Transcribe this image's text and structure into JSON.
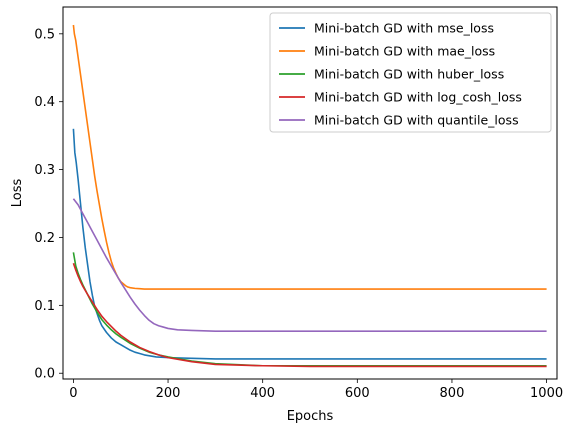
{
  "chart_data": {
    "type": "line",
    "title": "",
    "xlabel": "Epochs",
    "ylabel": "Loss",
    "xlim": [
      -22,
      1022
    ],
    "ylim": [
      -0.0085,
      0.5395
    ],
    "xticks": [
      "0",
      "200",
      "400",
      "600",
      "800",
      "1000"
    ],
    "yticks": [
      "0.0",
      "0.1",
      "0.2",
      "0.3",
      "0.4",
      "0.5"
    ],
    "grid": false,
    "legend_position": "top-right",
    "series": [
      {
        "name": "Mini-batch GD with mse_loss",
        "color": "#1f77b4",
        "x": [
          0,
          3,
          6,
          10,
          15,
          20,
          25,
          30,
          35,
          40,
          45,
          50,
          55,
          60,
          70,
          80,
          90,
          100,
          110,
          120,
          130,
          140,
          150,
          175,
          200,
          250,
          300,
          400,
          500,
          600,
          700,
          800,
          900,
          1000
        ],
        "y": [
          0.36,
          0.325,
          0.31,
          0.285,
          0.25,
          0.215,
          0.185,
          0.16,
          0.135,
          0.115,
          0.098,
          0.088,
          0.078,
          0.07,
          0.06,
          0.052,
          0.046,
          0.042,
          0.038,
          0.034,
          0.031,
          0.029,
          0.027,
          0.024,
          0.023,
          0.022,
          0.021,
          0.021,
          0.021,
          0.021,
          0.021,
          0.021,
          0.021,
          0.021
        ]
      },
      {
        "name": "Mini-batch GD with mae_loss",
        "color": "#ff7f0e",
        "x": [
          0,
          2,
          5,
          10,
          15,
          20,
          25,
          30,
          35,
          40,
          45,
          50,
          55,
          60,
          65,
          70,
          75,
          80,
          85,
          90,
          95,
          100,
          105,
          110,
          115,
          120,
          130,
          140,
          150,
          175,
          200,
          250,
          300,
          400,
          500,
          600,
          700,
          800,
          900,
          1000
        ],
        "y": [
          0.513,
          0.5,
          0.49,
          0.465,
          0.44,
          0.415,
          0.39,
          0.365,
          0.34,
          0.315,
          0.29,
          0.268,
          0.248,
          0.228,
          0.21,
          0.193,
          0.178,
          0.165,
          0.155,
          0.147,
          0.14,
          0.135,
          0.132,
          0.129,
          0.127,
          0.126,
          0.125,
          0.1245,
          0.124,
          0.124,
          0.124,
          0.124,
          0.124,
          0.124,
          0.124,
          0.124,
          0.124,
          0.124,
          0.124,
          0.124
        ]
      },
      {
        "name": "Mini-batch GD with huber_loss",
        "color": "#2ca02c",
        "x": [
          0,
          5,
          10,
          15,
          20,
          30,
          40,
          50,
          60,
          70,
          80,
          90,
          100,
          120,
          140,
          160,
          180,
          200,
          250,
          300,
          400,
          500,
          600,
          700,
          800,
          900,
          1000
        ],
        "y": [
          0.178,
          0.158,
          0.147,
          0.138,
          0.13,
          0.116,
          0.102,
          0.09,
          0.079,
          0.071,
          0.064,
          0.058,
          0.053,
          0.044,
          0.037,
          0.031,
          0.027,
          0.024,
          0.018,
          0.014,
          0.011,
          0.011,
          0.011,
          0.011,
          0.011,
          0.011,
          0.011
        ]
      },
      {
        "name": "Mini-batch GD with log_cosh_loss",
        "color": "#d62728",
        "x": [
          0,
          5,
          10,
          15,
          20,
          30,
          40,
          50,
          60,
          70,
          80,
          90,
          100,
          120,
          140,
          160,
          180,
          200,
          250,
          300,
          400,
          500,
          600,
          700,
          800,
          900,
          1000
        ],
        "y": [
          0.162,
          0.152,
          0.143,
          0.135,
          0.128,
          0.116,
          0.105,
          0.094,
          0.084,
          0.076,
          0.069,
          0.062,
          0.056,
          0.046,
          0.038,
          0.032,
          0.027,
          0.023,
          0.017,
          0.013,
          0.011,
          0.01,
          0.01,
          0.01,
          0.01,
          0.01,
          0.01
        ]
      },
      {
        "name": "Mini-batch GD with quantile_loss",
        "color": "#9467bd",
        "x": [
          0,
          10,
          20,
          30,
          40,
          50,
          60,
          70,
          80,
          90,
          100,
          110,
          120,
          130,
          140,
          150,
          160,
          170,
          180,
          190,
          200,
          220,
          250,
          300,
          350,
          400,
          500,
          600,
          700,
          800,
          900,
          1000
        ],
        "y": [
          0.257,
          0.248,
          0.235,
          0.222,
          0.209,
          0.196,
          0.183,
          0.17,
          0.158,
          0.146,
          0.134,
          0.123,
          0.112,
          0.102,
          0.093,
          0.085,
          0.078,
          0.073,
          0.07,
          0.068,
          0.066,
          0.064,
          0.063,
          0.062,
          0.062,
          0.062,
          0.062,
          0.062,
          0.062,
          0.062,
          0.062,
          0.062
        ]
      }
    ]
  }
}
